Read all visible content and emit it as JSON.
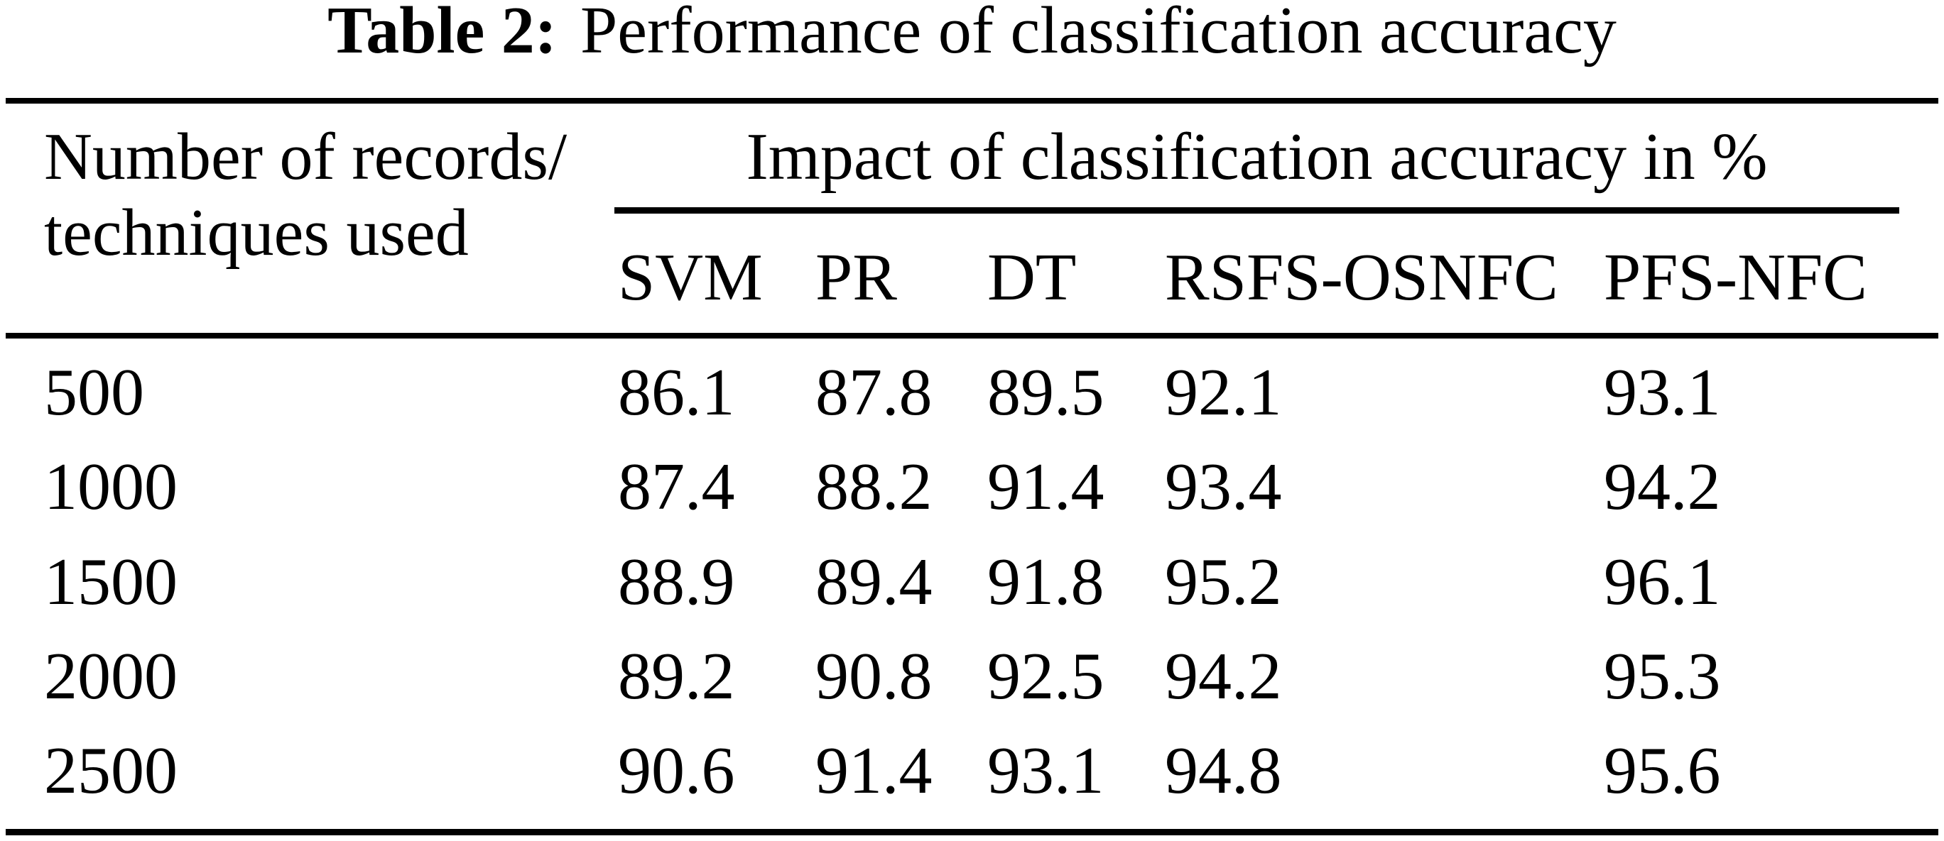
{
  "title": {
    "label": "Table 2:",
    "text": "Performance of classification accuracy"
  },
  "table": {
    "row_header": {
      "line1": "Number of records/",
      "line2": "techniques used"
    },
    "group_header": "Impact of classification accuracy in %",
    "columns": [
      "SVM",
      "PR",
      "DT",
      "RSFS-OSNFC",
      "PFS-NFC"
    ],
    "rows": [
      {
        "label": "500",
        "cells": [
          "86.1",
          "87.8",
          "89.5",
          "92.1",
          "93.1"
        ]
      },
      {
        "label": "1000",
        "cells": [
          "87.4",
          "88.2",
          "91.4",
          "93.4",
          "94.2"
        ]
      },
      {
        "label": "1500",
        "cells": [
          "88.9",
          "89.4",
          "91.8",
          "95.2",
          "96.1"
        ]
      },
      {
        "label": "2000",
        "cells": [
          "89.2",
          "90.8",
          "92.5",
          "94.2",
          "95.3"
        ]
      },
      {
        "label": "2500",
        "cells": [
          "90.6",
          "91.4",
          "93.1",
          "94.8",
          "95.6"
        ]
      }
    ]
  },
  "colors": {
    "background": "#ffffff",
    "text": "#000000",
    "rule": "#000000"
  }
}
